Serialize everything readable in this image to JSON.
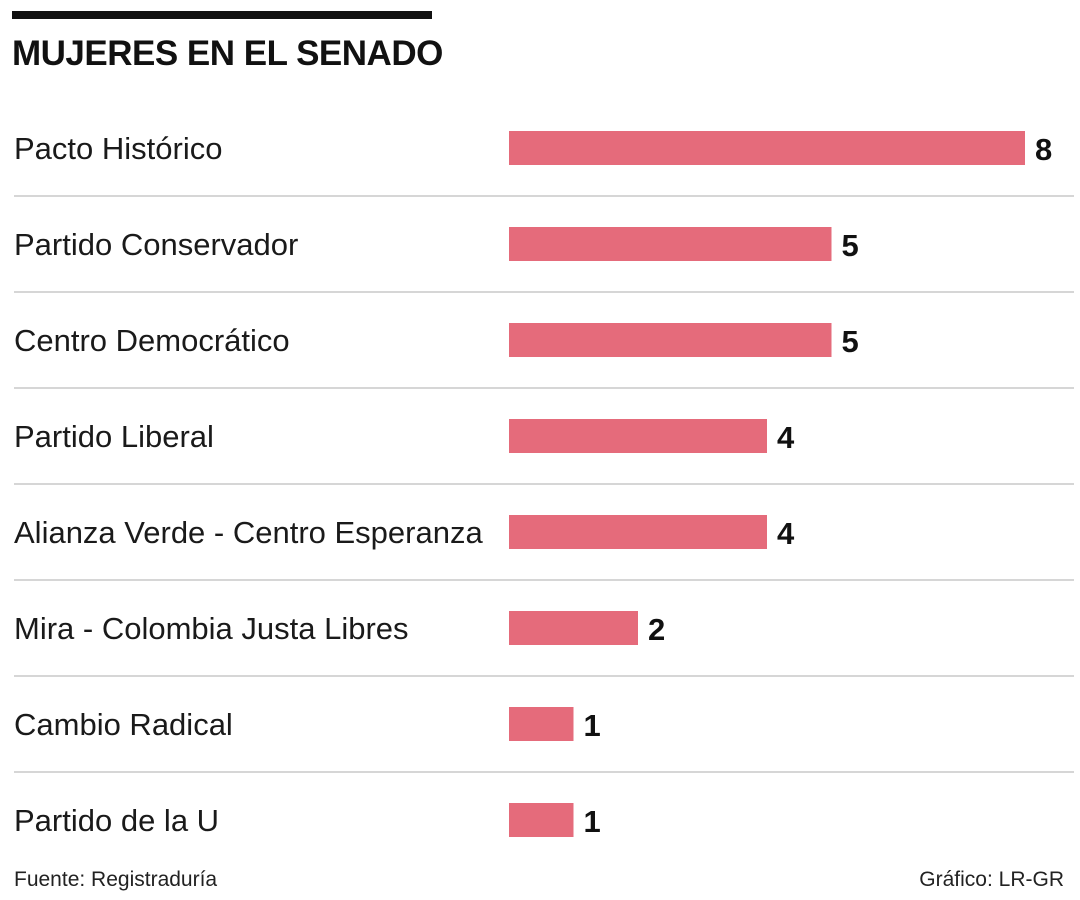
{
  "chart_data": {
    "type": "bar",
    "orientation": "horizontal",
    "title": "MUJERES EN EL SENADO",
    "categories": [
      "Pacto Histórico",
      "Partido Conservador",
      "Centro Democrático",
      "Partido Liberal",
      "Alianza Verde - Centro Esperanza",
      "Mira - Colombia Justa Libres",
      "Cambio Radical",
      "Partido de la U"
    ],
    "values": [
      8,
      5,
      5,
      4,
      4,
      2,
      1,
      1
    ],
    "xlabel": "",
    "ylabel": "",
    "xlim": [
      0,
      8
    ],
    "grid": false,
    "legend": "none",
    "bar_color": "#e56b7b",
    "data_labels": true
  },
  "footer": {
    "source": "Fuente: Registraduría",
    "credit": "Gráfico: LR-GR"
  }
}
